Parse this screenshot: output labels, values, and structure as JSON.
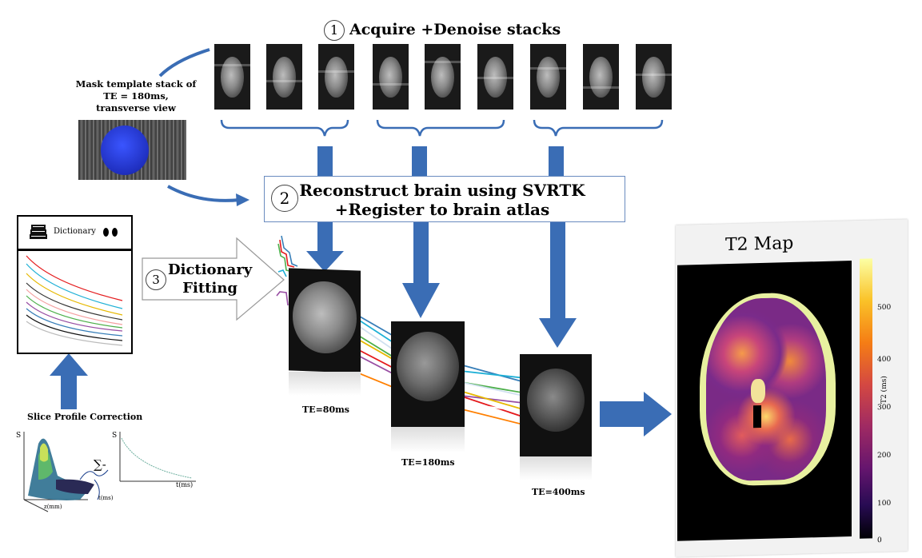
{
  "step1": {
    "number": "1",
    "text_a": "Acquire",
    "plus": "+",
    "text_b": "Denoise stacks"
  },
  "mask": {
    "line1": "Mask template stack of",
    "line2": "TE = 180ms,",
    "line3": "transverse view"
  },
  "step2": {
    "number": "2",
    "line1": "Reconstruct brain using SVRTK",
    "plus": "+",
    "line2": "Register to brain atlas"
  },
  "step3": {
    "number": "3",
    "line1": "Dictionary",
    "line2": "Fitting"
  },
  "dictionary": {
    "label": "Dictionary"
  },
  "slice_profile": {
    "title": "Slice Profile Correction",
    "axis_s": "S",
    "axis_z": "z(mm)",
    "axis_t": "t(ms)",
    "sum_symbol": "∑",
    "small_s": "S",
    "small_t": "t(ms)"
  },
  "te_labels": {
    "te80": "TE=80ms",
    "te180": "TE=180ms",
    "te400": "TE=400ms"
  },
  "t2map": {
    "title": "T2 Map",
    "colorbar_label": "T2 (ms)",
    "ticks": [
      "500",
      "400",
      "300",
      "200",
      "100",
      "0"
    ]
  },
  "colors": {
    "arrow_blue": "#3a6db5",
    "mask_blue": "#2a3fd8",
    "line_colors": [
      "#e41a1c",
      "#377eb8",
      "#4daf4a",
      "#984ea3",
      "#ff7f00",
      "#e6b800",
      "#1fb0d6",
      "#ffffff"
    ]
  }
}
